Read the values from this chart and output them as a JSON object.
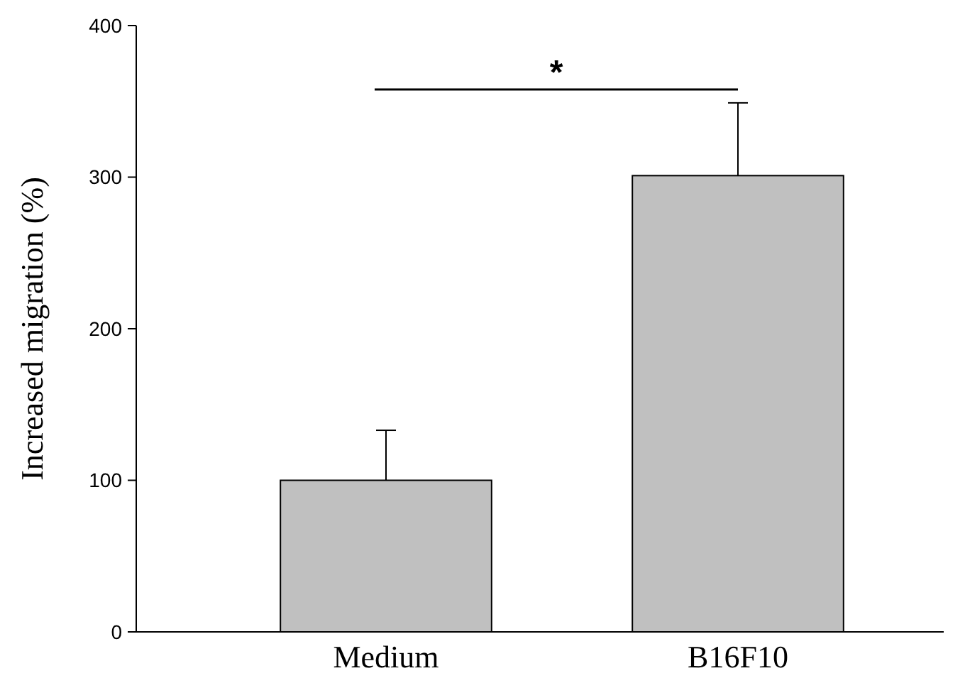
{
  "chart_data": {
    "type": "bar",
    "ylabel": "Increased migration (%)",
    "categories": [
      "Medium",
      "B16F10"
    ],
    "values": [
      100,
      301
    ],
    "errors": [
      [
        100,
        133
      ],
      [
        301,
        349
      ]
    ],
    "color": "#c0c0c0",
    "ylim": [
      0,
      400
    ],
    "yticks": [
      0,
      100,
      200,
      300,
      400
    ],
    "grid": false,
    "annotations": [
      "*"
    ]
  }
}
